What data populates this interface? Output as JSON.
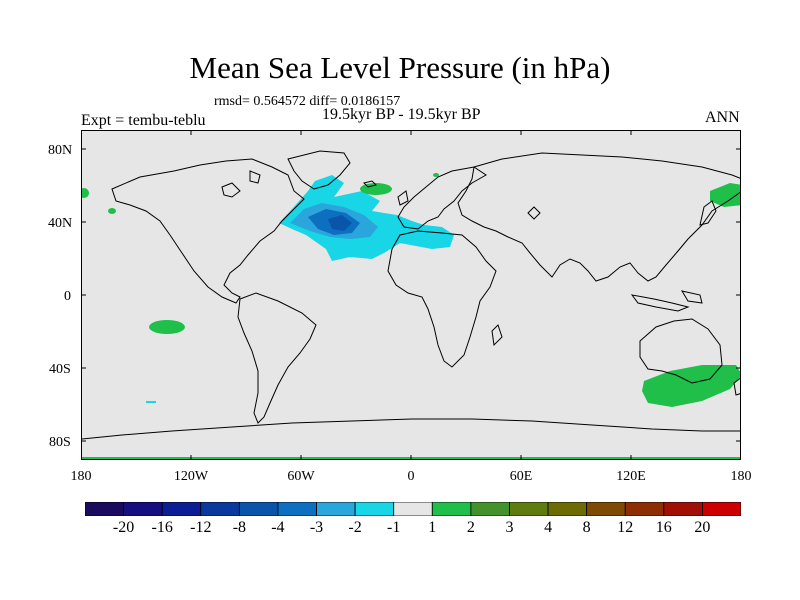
{
  "title": "Mean Sea Level Pressure (in hPa)",
  "stats": "rmsd= 0.564572 diff= 0.0186157",
  "period": "19.5kyr BP - 19.5kyr BP",
  "experiment": "Expt = tembu-teblu",
  "season": "ANN",
  "lat_labels": [
    "80N",
    "40N",
    "0",
    "40S",
    "80S"
  ],
  "lon_labels": [
    "180",
    "120W",
    "60W",
    "0",
    "60E",
    "120E",
    "180"
  ],
  "colorbar": {
    "labels": [
      "-20",
      "-16",
      "-12",
      "-8",
      "-4",
      "-3",
      "-2",
      "-1",
      "1",
      "2",
      "3",
      "4",
      "8",
      "12",
      "16",
      "20"
    ],
    "colors": [
      "#1a0b5e",
      "#150f80",
      "#0b1e96",
      "#0a3a9e",
      "#0a55aa",
      "#0d6fc0",
      "#2aa6dc",
      "#18d6e6",
      "#e6e6e6",
      "#1fbf4a",
      "#43922d",
      "#5e7d0e",
      "#6e6a04",
      "#7e4a05",
      "#8e2e05",
      "#a01005",
      "#cc0000"
    ]
  },
  "colors": {
    "map_background": "#e6e6e6",
    "ocean_neg_light": "#18d6e6",
    "ocean_neg_medium": "#2aa6dc",
    "ocean_neg_dark": "#0d6fc0",
    "positive_green": "#1fbf4a"
  }
}
